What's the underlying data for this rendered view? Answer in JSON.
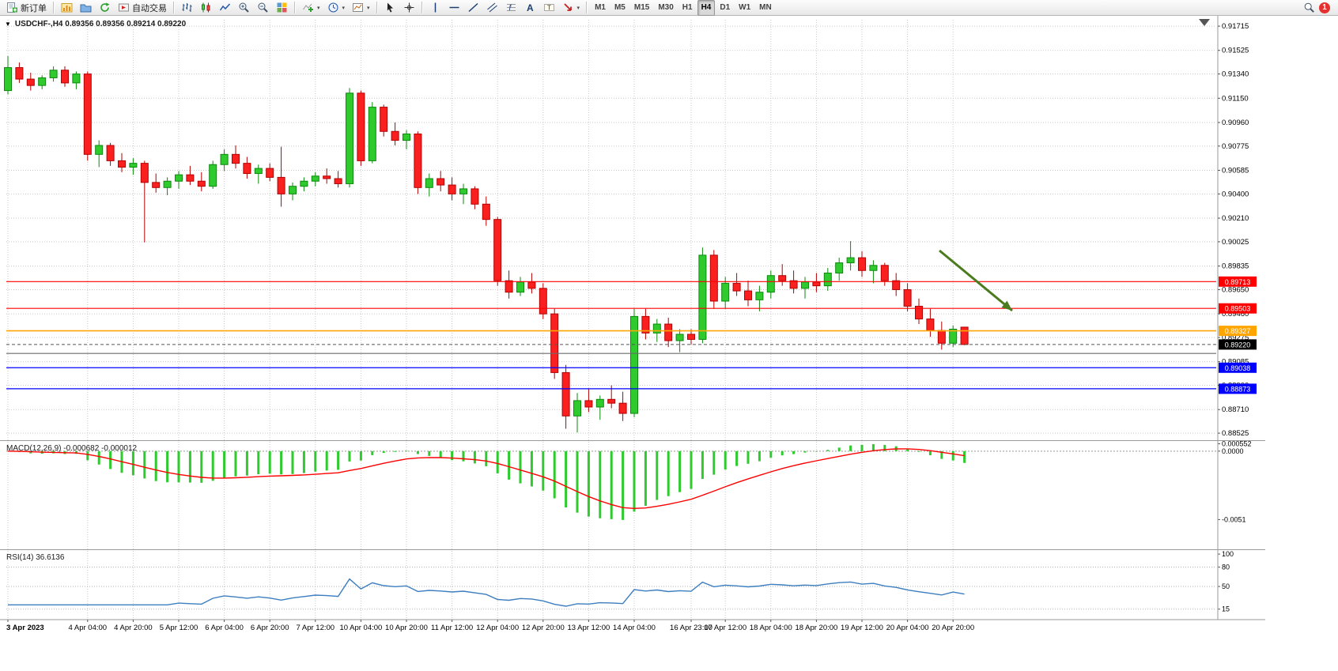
{
  "toolbar": {
    "groups": [
      {
        "items": [
          {
            "name": "new-order-button",
            "icon": "new-order-icon",
            "label": "新订单"
          }
        ]
      },
      {
        "items": [
          {
            "name": "charts-button",
            "icon": "charts-icon"
          },
          {
            "name": "profiles-button",
            "icon": "profiles-icon"
          },
          {
            "name": "refresh-button",
            "icon": "refresh-icon"
          },
          {
            "name": "auto-trading-button",
            "icon": "autotrade-icon",
            "label": "自动交易"
          }
        ]
      },
      {
        "items": [
          {
            "name": "bar-chart-button",
            "icon": "bar-chart-icon"
          },
          {
            "name": "candlestick-chart-button",
            "icon": "candle-icon"
          },
          {
            "name": "line-chart-button",
            "icon": "line-chart-icon"
          },
          {
            "name": "zoom-in-button",
            "icon": "zoom-in-icon"
          },
          {
            "name": "zoom-out-button",
            "icon": "zoom-out-icon"
          },
          {
            "name": "tile-windows-button",
            "icon": "tile-icon"
          }
        ]
      },
      {
        "items": [
          {
            "name": "indicators-button",
            "icon": "indicators-icon",
            "caret": true
          },
          {
            "name": "periods-button",
            "icon": "clock-icon",
            "caret": true
          },
          {
            "name": "templates-button",
            "icon": "template-icon",
            "caret": true
          }
        ]
      },
      {
        "items": [
          {
            "name": "cursor-button",
            "icon": "cursor-icon"
          },
          {
            "name": "crosshair-button",
            "icon": "crosshair-icon"
          }
        ]
      },
      {
        "items": [
          {
            "name": "vertical-line-button",
            "icon": "vline-icon"
          },
          {
            "name": "horizontal-line-button",
            "icon": "hline-icon"
          },
          {
            "name": "trendline-button",
            "icon": "trend-icon"
          },
          {
            "name": "channel-button",
            "icon": "channel-icon"
          },
          {
            "name": "fibonacci-button",
            "icon": "fibo-icon"
          },
          {
            "name": "text-button",
            "icon": "text-icon"
          },
          {
            "name": "label-button",
            "icon": "label-icon"
          },
          {
            "name": "arrows-button",
            "icon": "arrows-icon",
            "caret": true
          }
        ]
      }
    ],
    "timeframes": [
      "M1",
      "M5",
      "M15",
      "M30",
      "H1",
      "H4",
      "D1",
      "W1",
      "MN"
    ],
    "active_timeframe": "H4",
    "notification_badge": "1"
  },
  "chart": {
    "symbol": "USDCHF-",
    "period": "H4",
    "title": "USDCHF-,H4  0.89356 0.89356 0.89214 0.89220",
    "ohlc": {
      "open": "0.89356",
      "high": "0.89356",
      "low": "0.89214",
      "close": "0.89220"
    }
  },
  "chart_data": {
    "type": "candlestick-ohlc",
    "symbol": "USDCHF",
    "timeframe": "H4",
    "price_range": [
      0.88476,
      0.91765
    ],
    "price_axis_labels": [
      "0.91715",
      "0.91525",
      "0.91340",
      "0.91150",
      "0.90960",
      "0.90775",
      "0.90585",
      "0.90400",
      "0.90210",
      "0.90025",
      "0.89835",
      "0.89650",
      "0.89460",
      "0.89275",
      "0.89085",
      "0.88900",
      "0.88710",
      "0.88525"
    ],
    "time_labels": [
      {
        "index": 0,
        "text": "3 Apr 2023"
      },
      {
        "index": 7,
        "text": "4 Apr 04:00"
      },
      {
        "index": 11,
        "text": "4 Apr 20:00"
      },
      {
        "index": 15,
        "text": "5 Apr 12:00"
      },
      {
        "index": 19,
        "text": "6 Apr 04:00"
      },
      {
        "index": 23,
        "text": "6 Apr 20:00"
      },
      {
        "index": 27,
        "text": "7 Apr 12:00"
      },
      {
        "index": 31,
        "text": "10 Apr 04:00"
      },
      {
        "index": 35,
        "text": "10 Apr 20:00"
      },
      {
        "index": 39,
        "text": "11 Apr 12:00"
      },
      {
        "index": 43,
        "text": "12 Apr 04:00"
      },
      {
        "index": 47,
        "text": "12 Apr 20:00"
      },
      {
        "index": 51,
        "text": "13 Apr 12:00"
      },
      {
        "index": 55,
        "text": "14 Apr 04:00"
      },
      {
        "index": 60,
        "text": "16 Apr 23:00"
      },
      {
        "index": 63,
        "text": "17 Apr 12:00"
      },
      {
        "index": 67,
        "text": "18 Apr 04:00"
      },
      {
        "index": 71,
        "text": "18 Apr 20:00"
      },
      {
        "index": 75,
        "text": "19 Apr 12:00"
      },
      {
        "index": 79,
        "text": "20 Apr 04:00"
      },
      {
        "index": 83,
        "text": "20 Apr 20:00"
      }
    ],
    "candles": [
      [
        0.9121,
        0.9148,
        0.9118,
        0.9139
      ],
      [
        0.9139,
        0.9143,
        0.9127,
        0.913
      ],
      [
        0.913,
        0.9135,
        0.9121,
        0.9125
      ],
      [
        0.9125,
        0.9133,
        0.9122,
        0.9131
      ],
      [
        0.9131,
        0.914,
        0.9128,
        0.9137
      ],
      [
        0.9137,
        0.914,
        0.9124,
        0.9127
      ],
      [
        0.9127,
        0.9136,
        0.9122,
        0.9134
      ],
      [
        0.9134,
        0.9136,
        0.9066,
        0.9071
      ],
      [
        0.9071,
        0.9082,
        0.9061,
        0.9078
      ],
      [
        0.9078,
        0.908,
        0.9062,
        0.9066
      ],
      [
        0.9066,
        0.9072,
        0.9057,
        0.9061
      ],
      [
        0.9061,
        0.9068,
        0.9055,
        0.9064
      ],
      [
        0.9064,
        0.9066,
        0.9002,
        0.9049
      ],
      [
        0.9049,
        0.9056,
        0.9041,
        0.9045
      ],
      [
        0.9045,
        0.9053,
        0.9039,
        0.905
      ],
      [
        0.905,
        0.9058,
        0.9044,
        0.9055
      ],
      [
        0.9055,
        0.9062,
        0.9047,
        0.905
      ],
      [
        0.905,
        0.9057,
        0.9042,
        0.9046
      ],
      [
        0.9046,
        0.9066,
        0.9044,
        0.9063
      ],
      [
        0.9063,
        0.9075,
        0.9058,
        0.9071
      ],
      [
        0.9071,
        0.9078,
        0.906,
        0.9064
      ],
      [
        0.9064,
        0.9069,
        0.9052,
        0.9056
      ],
      [
        0.9056,
        0.9063,
        0.9048,
        0.906
      ],
      [
        0.906,
        0.9064,
        0.905,
        0.9053
      ],
      [
        0.9053,
        0.9077,
        0.903,
        0.904
      ],
      [
        0.904,
        0.9049,
        0.9035,
        0.9046
      ],
      [
        0.9046,
        0.9053,
        0.9042,
        0.905
      ],
      [
        0.905,
        0.9057,
        0.9046,
        0.9054
      ],
      [
        0.9054,
        0.906,
        0.9048,
        0.9052
      ],
      [
        0.9052,
        0.9058,
        0.9045,
        0.9048
      ],
      [
        0.9048,
        0.9123,
        0.9045,
        0.9119
      ],
      [
        0.9119,
        0.9121,
        0.9062,
        0.9066
      ],
      [
        0.9066,
        0.9112,
        0.9064,
        0.9108
      ],
      [
        0.9108,
        0.911,
        0.9085,
        0.9089
      ],
      [
        0.9089,
        0.9096,
        0.9078,
        0.9082
      ],
      [
        0.9082,
        0.909,
        0.9075,
        0.9087
      ],
      [
        0.9087,
        0.9089,
        0.904,
        0.9045
      ],
      [
        0.9045,
        0.9056,
        0.9038,
        0.9052
      ],
      [
        0.9052,
        0.9058,
        0.9042,
        0.9047
      ],
      [
        0.9047,
        0.9053,
        0.9035,
        0.904
      ],
      [
        0.904,
        0.9048,
        0.9032,
        0.9044
      ],
      [
        0.9044,
        0.9046,
        0.9028,
        0.9032
      ],
      [
        0.9032,
        0.9038,
        0.9015,
        0.902
      ],
      [
        0.902,
        0.9022,
        0.8968,
        0.8972
      ],
      [
        0.8972,
        0.898,
        0.8958,
        0.8963
      ],
      [
        0.8963,
        0.8975,
        0.896,
        0.8971
      ],
      [
        0.8971,
        0.8978,
        0.8962,
        0.8966
      ],
      [
        0.8966,
        0.897,
        0.8942,
        0.8946
      ],
      [
        0.8946,
        0.895,
        0.8895,
        0.89
      ],
      [
        0.89,
        0.8906,
        0.8856,
        0.8866
      ],
      [
        0.8866,
        0.8884,
        0.8853,
        0.8878
      ],
      [
        0.8878,
        0.8887,
        0.8869,
        0.8873
      ],
      [
        0.8873,
        0.8882,
        0.8863,
        0.8879
      ],
      [
        0.8879,
        0.889,
        0.8872,
        0.8876
      ],
      [
        0.8876,
        0.8885,
        0.8862,
        0.8868
      ],
      [
        0.8868,
        0.895,
        0.8865,
        0.8944
      ],
      [
        0.8944,
        0.895,
        0.8926,
        0.8931
      ],
      [
        0.8931,
        0.8942,
        0.8924,
        0.8938
      ],
      [
        0.8938,
        0.8943,
        0.892,
        0.8925
      ],
      [
        0.8925,
        0.8934,
        0.8916,
        0.893
      ],
      [
        0.893,
        0.8934,
        0.8922,
        0.8926
      ],
      [
        0.8926,
        0.8998,
        0.8923,
        0.8992
      ],
      [
        0.8992,
        0.8996,
        0.895,
        0.8956
      ],
      [
        0.8956,
        0.8975,
        0.895,
        0.897
      ],
      [
        0.897,
        0.8978,
        0.896,
        0.8964
      ],
      [
        0.8964,
        0.8972,
        0.8952,
        0.8957
      ],
      [
        0.8957,
        0.8968,
        0.8948,
        0.8963
      ],
      [
        0.8963,
        0.898,
        0.8958,
        0.8976
      ],
      [
        0.8976,
        0.8985,
        0.8968,
        0.8972
      ],
      [
        0.8972,
        0.898,
        0.8962,
        0.8966
      ],
      [
        0.8966,
        0.8975,
        0.8958,
        0.8971
      ],
      [
        0.8971,
        0.8978,
        0.8963,
        0.8968
      ],
      [
        0.8968,
        0.8982,
        0.8964,
        0.8978
      ],
      [
        0.8978,
        0.899,
        0.8972,
        0.8986
      ],
      [
        0.8986,
        0.9003,
        0.898,
        0.899
      ],
      [
        0.899,
        0.8995,
        0.8975,
        0.898
      ],
      [
        0.898,
        0.8988,
        0.897,
        0.8984
      ],
      [
        0.8984,
        0.8986,
        0.8968,
        0.8972
      ],
      [
        0.8972,
        0.8978,
        0.896,
        0.8965
      ],
      [
        0.8965,
        0.897,
        0.8948,
        0.8952
      ],
      [
        0.8952,
        0.8958,
        0.8938,
        0.8942
      ],
      [
        0.8942,
        0.895,
        0.8928,
        0.8933
      ],
      [
        0.8933,
        0.894,
        0.8918,
        0.8923
      ],
      [
        0.8923,
        0.8937,
        0.892,
        0.8934
      ],
      [
        0.89356,
        0.89356,
        0.89214,
        0.8922
      ]
    ],
    "hlines": [
      {
        "price": 0.89713,
        "text": "0.89713",
        "color": "#ff0000",
        "width": 1.2
      },
      {
        "price": 0.89503,
        "text": "0.89503",
        "color": "#ff0000",
        "width": 1.2
      },
      {
        "price": 0.89327,
        "text": "0.89327",
        "color": "#ffa500",
        "width": 1.6
      },
      {
        "price": 0.8915,
        "text": "",
        "color": "#6b6b6b",
        "width": 1.2
      },
      {
        "price": 0.89038,
        "text": "0.89038",
        "color": "#0000ff",
        "width": 1.2
      },
      {
        "price": 0.88873,
        "text": "0.88873",
        "color": "#0000ff",
        "width": 1.2
      }
    ],
    "current_price": {
      "value": 0.8922,
      "text": "0.89220",
      "color": "#000000"
    },
    "annotation_arrow": {
      "from": [
        1188,
        317
      ],
      "to": [
        1280,
        393
      ]
    },
    "indicators": [
      {
        "name": "MACD",
        "params": [
          12,
          26,
          9
        ],
        "label": "MACD(12,26,9) -0.000682 -0.000012",
        "axis_labels": [
          {
            "value": 0.000552,
            "text": "0.000552"
          },
          {
            "value": 0,
            "text": "0.0000"
          },
          {
            "value": -0.00513,
            "text": "-0.0051"
          }
        ]
      },
      {
        "name": "RSI",
        "params": [
          14
        ],
        "label": "RSI(14) 36.6136",
        "levels": [
          80,
          50,
          15
        ],
        "axis_labels": [
          {
            "value": 100,
            "text": "100"
          },
          {
            "value": 80,
            "text": "80"
          },
          {
            "value": 50,
            "text": "50"
          },
          {
            "value": 15,
            "text": "15"
          }
        ]
      }
    ],
    "colors": {
      "bull": "#2eca2e",
      "bull_border": "#0c8a0c",
      "bear": "#fb2020",
      "bear_border": "#b30000",
      "grid": "#c9c9c9",
      "frame": "#9a9a9a",
      "macd_hist": "#2eca2e",
      "macd_signal": "#ff0000",
      "rsi_line": "#3c7ebf",
      "arrow": "#4a7c1f",
      "bid_line": "#555555"
    }
  }
}
